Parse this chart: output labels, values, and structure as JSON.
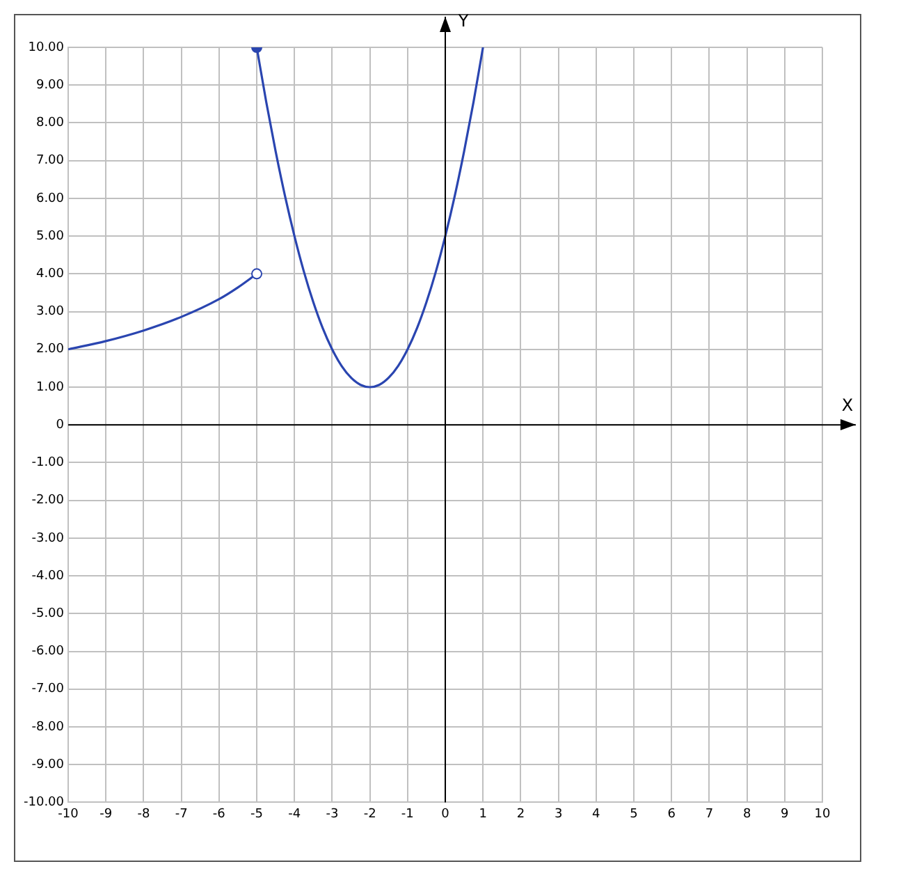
{
  "chart_data": {
    "type": "line",
    "xlabel": "X",
    "ylabel": "Y",
    "xlim": [
      -10,
      10
    ],
    "ylim": [
      -10,
      10
    ],
    "xticks": [
      -10,
      -9,
      -8,
      -7,
      -6,
      -5,
      -4,
      -3,
      -2,
      -1,
      0,
      1,
      2,
      3,
      4,
      5,
      6,
      7,
      8,
      9,
      10
    ],
    "yticks": [
      {
        "value": -10,
        "label": "-10.00"
      },
      {
        "value": -9,
        "label": "-9.00"
      },
      {
        "value": -8,
        "label": "-8.00"
      },
      {
        "value": -7,
        "label": "-7.00"
      },
      {
        "value": -6,
        "label": "-6.00"
      },
      {
        "value": -5,
        "label": "-5.00"
      },
      {
        "value": -4,
        "label": "-4.00"
      },
      {
        "value": -3,
        "label": "-3.00"
      },
      {
        "value": -2,
        "label": "-2.00"
      },
      {
        "value": -1,
        "label": "-1.00"
      },
      {
        "value": 0,
        "label": "0"
      },
      {
        "value": 1,
        "label": "1.00"
      },
      {
        "value": 2,
        "label": "2.00"
      },
      {
        "value": 3,
        "label": "3.00"
      },
      {
        "value": 4,
        "label": "4.00"
      },
      {
        "value": 5,
        "label": "5.00"
      },
      {
        "value": 6,
        "label": "6.00"
      },
      {
        "value": 7,
        "label": "7.00"
      },
      {
        "value": 8,
        "label": "8.00"
      },
      {
        "value": 9,
        "label": "9.00"
      },
      {
        "value": 10,
        "label": "10.00"
      }
    ],
    "grid": true,
    "legend": false,
    "marker": "none",
    "line_style": "solid",
    "series": [
      {
        "type": "line",
        "color": "#2a45b0",
        "x": [
          -10,
          -9,
          -8,
          -7,
          -6,
          -5.5,
          -5
        ],
        "values": [
          2,
          2.22,
          2.5,
          2.86,
          3.33,
          3.64,
          4
        ]
      },
      {
        "type": "line",
        "color": "#2a45b0",
        "x": [
          -5,
          -4.75,
          -4.5,
          -4.25,
          -4,
          -3.75,
          -3.5,
          -3.25,
          -3,
          -2.75,
          -2.5,
          -2.25,
          -2,
          -1.75,
          -1.5,
          -1.25,
          -1,
          -0.75,
          -0.5,
          -0.25,
          0,
          0.25,
          0.5,
          0.75,
          1
        ],
        "values": [
          10,
          8.56,
          7.25,
          6.06,
          5,
          4.06,
          3.25,
          2.56,
          2,
          1.56,
          1.25,
          1.06,
          1,
          1.06,
          1.25,
          1.56,
          2,
          2.56,
          3.25,
          4.06,
          5,
          6.06,
          7.25,
          8.56,
          10
        ]
      },
      {
        "type": "scatter",
        "color": "#2a45b0",
        "marker": "circle",
        "x": [
          -5
        ],
        "values": [
          10
        ]
      },
      {
        "type": "scatter",
        "color": "#ffffff",
        "marker": "circle",
        "x": [
          -5
        ],
        "values": [
          4
        ]
      }
    ]
  }
}
